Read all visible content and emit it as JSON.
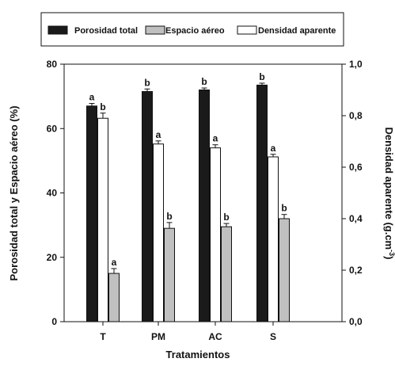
{
  "chart_data": {
    "type": "bar",
    "categories": [
      "T",
      "PM",
      "AC",
      "S"
    ],
    "xlabel": "Tratamientos",
    "ylabel": "Porosidad total y Espacio aéreo (%)",
    "ylabel_right": "Densidad aparente (g.cm",
    "ylabel_right_sup": "-3",
    "ylabel_right_close": ")",
    "ylim": [
      0,
      80
    ],
    "ylim_right": [
      0,
      1.0
    ],
    "yticks": [
      "0",
      "20",
      "40",
      "60",
      "80"
    ],
    "yticks_right": [
      "0,0",
      "0,2",
      "0,4",
      "0,6",
      "0,8",
      "1,0"
    ],
    "legend_position": "top",
    "grid": false,
    "series": [
      {
        "name": "Porosidad total",
        "axis": "left",
        "color": "#1a1a1a",
        "values": [
          67,
          71.5,
          72,
          73.5
        ],
        "errors": [
          0.8,
          0.8,
          0.6,
          0.6
        ],
        "labels": [
          "a",
          "b",
          "b",
          "b"
        ]
      },
      {
        "name": "Espacio aéreo",
        "axis": "left",
        "color": "#c0c0c0",
        "values": [
          15,
          29,
          29.5,
          32
        ],
        "errors": [
          1.5,
          1.8,
          1.0,
          1.3
        ],
        "labels": [
          "a",
          "b",
          "b",
          "b"
        ]
      },
      {
        "name": "Densidad aparente",
        "axis": "right",
        "color": "#ffffff",
        "values": [
          0.79,
          0.69,
          0.675,
          0.64
        ],
        "errors": [
          0.02,
          0.012,
          0.012,
          0.01
        ],
        "labels": [
          "b",
          "a",
          "a",
          "a"
        ]
      }
    ]
  }
}
